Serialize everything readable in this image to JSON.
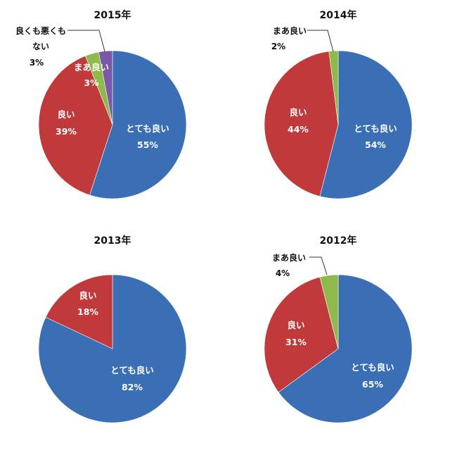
{
  "chart_data": [
    {
      "type": "pie",
      "title": "2015年",
      "slices": [
        {
          "label": "とても良い",
          "value": 55,
          "text": "55%",
          "color": "#3a6fb5"
        },
        {
          "label": "良い",
          "value": 39,
          "text": "39%",
          "color": "#c0393b"
        },
        {
          "label": "まあ良い",
          "value": 3,
          "text": "3%",
          "color": "#8fba4b"
        },
        {
          "label": "良くも悪くもない",
          "label_lines": [
            "良くも悪くも",
            "ない"
          ],
          "value": 3,
          "text": "3%",
          "color": "#7b59a8"
        }
      ]
    },
    {
      "type": "pie",
      "title": "2014年",
      "slices": [
        {
          "label": "とても良い",
          "value": 54,
          "text": "54%",
          "color": "#3a6fb5"
        },
        {
          "label": "良い",
          "value": 44,
          "text": "44%",
          "color": "#c0393b"
        },
        {
          "label": "まあ良い",
          "value": 2,
          "text": "2%",
          "color": "#8fba4b"
        }
      ]
    },
    {
      "type": "pie",
      "title": "2013年",
      "slices": [
        {
          "label": "とても良い",
          "value": 82,
          "text": "82%",
          "color": "#3a6fb5"
        },
        {
          "label": "良い",
          "value": 18,
          "text": "18%",
          "color": "#c0393b"
        }
      ]
    },
    {
      "type": "pie",
      "title": "2012年",
      "slices": [
        {
          "label": "とても良い",
          "value": 65,
          "text": "65%",
          "color": "#3a6fb5"
        },
        {
          "label": "良い",
          "value": 31,
          "text": "31%",
          "color": "#c0393b"
        },
        {
          "label": "まあ良い",
          "value": 4,
          "text": "4%",
          "color": "#8fba4b"
        }
      ]
    }
  ]
}
